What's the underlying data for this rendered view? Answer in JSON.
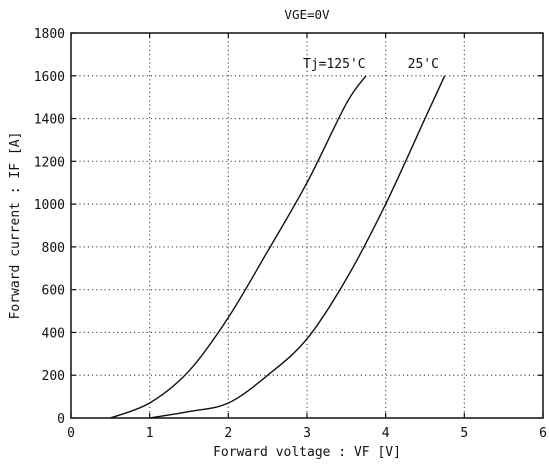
{
  "chart_data": {
    "type": "line",
    "title": "VGE=0V",
    "xlabel": "Forward voltage : VF [V]",
    "ylabel": "Forward current : IF [A]",
    "xlim": [
      0,
      6
    ],
    "ylim": [
      0,
      1800
    ],
    "x_ticks": [
      0,
      1,
      2,
      3,
      4,
      5,
      6
    ],
    "x_tick_labels": [
      "0",
      "1",
      "2",
      "3",
      "4",
      "5",
      "6"
    ],
    "y_ticks": [
      0,
      200,
      400,
      600,
      800,
      1000,
      1200,
      1400,
      1600,
      1800
    ],
    "y_tick_labels": [
      "0",
      "200",
      "400",
      "600",
      "800",
      "1000",
      "1200",
      "1400",
      "1600",
      "1800"
    ],
    "grid": true,
    "grid_style": "dotted",
    "colors": {
      "line": "#111111",
      "frame": "#111111",
      "grid": "#555555"
    },
    "series": [
      {
        "name": "Tj=125'C",
        "x": [
          0.5,
          1.0,
          1.5,
          2.0,
          2.5,
          3.0,
          3.5,
          3.75
        ],
        "y": [
          0,
          70,
          220,
          470,
          780,
          1100,
          1470,
          1600
        ],
        "label_at": [
          3.1,
          1655
        ]
      },
      {
        "name": "25'C",
        "x": [
          1.0,
          1.5,
          2.0,
          2.5,
          3.0,
          3.5,
          4.0,
          4.5,
          4.75
        ],
        "y": [
          0,
          30,
          70,
          200,
          370,
          650,
          1000,
          1400,
          1600
        ]
      }
    ]
  }
}
